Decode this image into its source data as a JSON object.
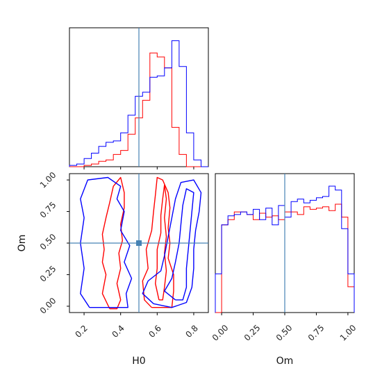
{
  "chart_data": {
    "type": "corner",
    "parameters": [
      "H0",
      "Om"
    ],
    "truth": {
      "H0": 0.5,
      "Om": 0.5
    },
    "colors": {
      "series_red": "#ff0000",
      "series_blue": "#0000ff",
      "truth_line": "#4682b4"
    },
    "h0_marginal": {
      "bin_edges": [
        0.12,
        0.16,
        0.2,
        0.24,
        0.28,
        0.32,
        0.36,
        0.4,
        0.44,
        0.48,
        0.52,
        0.56,
        0.6,
        0.64,
        0.68,
        0.72,
        0.76,
        0.8,
        0.84,
        0.88
      ],
      "series": [
        {
          "name": "",
          "color": "#ff0000",
          "counts": [
            0,
            0,
            0.01,
            0.02,
            0.04,
            0.05,
            0.09,
            0.12,
            0.24,
            0.36,
            0.49,
            0.84,
            0.81,
            0.73,
            0.29,
            0.09,
            0,
            0,
            0
          ]
        },
        {
          "name": "",
          "color": "#0000ff",
          "counts": [
            0.01,
            0.02,
            0.06,
            0.1,
            0.15,
            0.18,
            0.19,
            0.25,
            0.38,
            0.52,
            0.55,
            0.66,
            0.67,
            0.73,
            0.93,
            0.74,
            0.25,
            0.05,
            0
          ]
        }
      ]
    },
    "om_marginal": {
      "bin_edges": [
        -0.05,
        0.0,
        0.05,
        0.1,
        0.15,
        0.2,
        0.25,
        0.3,
        0.35,
        0.4,
        0.45,
        0.5,
        0.55,
        0.6,
        0.65,
        0.7,
        0.75,
        0.8,
        0.85,
        0.9,
        0.95,
        1.0,
        1.05
      ],
      "series": [
        {
          "name": "",
          "color": "#ff0000",
          "counts": [
            0,
            0.68,
            0.72,
            0.78,
            0.78,
            0.76,
            0.72,
            0.77,
            0.74,
            0.75,
            0.72,
            0.78,
            0.78,
            0.76,
            0.82,
            0.8,
            0.81,
            0.82,
            0.79,
            0.84,
            0.74,
            0.2
          ]
        },
        {
          "name": "",
          "color": "#0000ff",
          "counts": [
            0.3,
            0.68,
            0.75,
            0.76,
            0.78,
            0.76,
            0.8,
            0.72,
            0.81,
            0.68,
            0.83,
            0.74,
            0.86,
            0.88,
            0.85,
            0.87,
            0.89,
            0.9,
            0.98,
            0.95,
            0.65,
            0.3
          ]
        }
      ]
    },
    "joint": {
      "xlim": [
        0.12,
        0.88
      ],
      "ylim": [
        -0.05,
        1.05
      ],
      "contours": [
        {
          "color": "#ff0000",
          "points": [
            [
              0.34,
              -0.02
            ],
            [
              0.3,
              0.1
            ],
            [
              0.32,
              0.25
            ],
            [
              0.3,
              0.35
            ],
            [
              0.31,
              0.45
            ],
            [
              0.3,
              0.57
            ],
            [
              0.32,
              0.7
            ],
            [
              0.34,
              0.82
            ],
            [
              0.36,
              0.95
            ],
            [
              0.4,
              1.02
            ],
            [
              0.42,
              0.9
            ],
            [
              0.42,
              0.78
            ],
            [
              0.4,
              0.65
            ],
            [
              0.41,
              0.52
            ],
            [
              0.39,
              0.42
            ],
            [
              0.4,
              0.3
            ],
            [
              0.38,
              0.18
            ],
            [
              0.4,
              0.05
            ],
            [
              0.38,
              -0.02
            ],
            [
              0.34,
              -0.02
            ]
          ]
        },
        {
          "color": "#ff0000",
          "points": [
            [
              0.57,
              -0.01
            ],
            [
              0.53,
              0.05
            ],
            [
              0.52,
              0.2
            ],
            [
              0.55,
              0.3
            ],
            [
              0.54,
              0.45
            ],
            [
              0.57,
              0.6
            ],
            [
              0.58,
              0.75
            ],
            [
              0.59,
              0.88
            ],
            [
              0.6,
              1.02
            ],
            [
              0.63,
              1.0
            ],
            [
              0.66,
              0.9
            ],
            [
              0.67,
              0.78
            ],
            [
              0.66,
              0.62
            ],
            [
              0.67,
              0.5
            ],
            [
              0.66,
              0.38
            ],
            [
              0.69,
              0.25
            ],
            [
              0.69,
              0.12
            ],
            [
              0.68,
              -0.01
            ],
            [
              0.57,
              -0.01
            ]
          ]
        },
        {
          "color": "#ff0000",
          "points": [
            [
              0.61,
              0.05
            ],
            [
              0.59,
              0.18
            ],
            [
              0.6,
              0.3
            ],
            [
              0.6,
              0.45
            ],
            [
              0.62,
              0.58
            ],
            [
              0.62,
              0.72
            ],
            [
              0.63,
              0.85
            ],
            [
              0.64,
              0.96
            ],
            [
              0.65,
              0.85
            ],
            [
              0.64,
              0.7
            ],
            [
              0.65,
              0.55
            ],
            [
              0.64,
              0.42
            ],
            [
              0.65,
              0.28
            ],
            [
              0.64,
              0.15
            ],
            [
              0.63,
              0.05
            ],
            [
              0.61,
              0.05
            ]
          ]
        },
        {
          "color": "#0000ff",
          "points": [
            [
              0.23,
              -0.01
            ],
            [
              0.18,
              0.1
            ],
            [
              0.2,
              0.3
            ],
            [
              0.18,
              0.5
            ],
            [
              0.2,
              0.7
            ],
            [
              0.18,
              0.85
            ],
            [
              0.22,
              1.0
            ],
            [
              0.33,
              1.02
            ],
            [
              0.4,
              0.95
            ],
            [
              0.38,
              0.85
            ],
            [
              0.42,
              0.75
            ],
            [
              0.4,
              0.6
            ],
            [
              0.45,
              0.48
            ],
            [
              0.42,
              0.35
            ],
            [
              0.46,
              0.22
            ],
            [
              0.43,
              0.1
            ],
            [
              0.44,
              -0.01
            ],
            [
              0.23,
              -0.01
            ]
          ]
        },
        {
          "color": "#0000ff",
          "points": [
            [
              0.58,
              0.02
            ],
            [
              0.52,
              0.1
            ],
            [
              0.55,
              0.2
            ],
            [
              0.62,
              0.28
            ],
            [
              0.64,
              0.4
            ],
            [
              0.66,
              0.55
            ],
            [
              0.68,
              0.7
            ],
            [
              0.7,
              0.85
            ],
            [
              0.73,
              0.98
            ],
            [
              0.8,
              1.0
            ],
            [
              0.84,
              0.9
            ],
            [
              0.83,
              0.75
            ],
            [
              0.81,
              0.6
            ],
            [
              0.8,
              0.45
            ],
            [
              0.8,
              0.3
            ],
            [
              0.79,
              0.15
            ],
            [
              0.76,
              0.03
            ],
            [
              0.68,
              -0.01
            ],
            [
              0.58,
              0.02
            ]
          ]
        },
        {
          "color": "#0000ff",
          "points": [
            [
              0.7,
              0.05
            ],
            [
              0.64,
              0.12
            ],
            [
              0.68,
              0.22
            ],
            [
              0.7,
              0.35
            ],
            [
              0.72,
              0.5
            ],
            [
              0.73,
              0.65
            ],
            [
              0.74,
              0.8
            ],
            [
              0.76,
              0.93
            ],
            [
              0.8,
              0.9
            ],
            [
              0.79,
              0.75
            ],
            [
              0.78,
              0.6
            ],
            [
              0.77,
              0.45
            ],
            [
              0.76,
              0.3
            ],
            [
              0.76,
              0.15
            ],
            [
              0.74,
              0.05
            ],
            [
              0.7,
              0.05
            ]
          ]
        }
      ]
    },
    "ticks": {
      "h0": [
        "0.2",
        "0.4",
        "0.6",
        "0.8"
      ],
      "om": [
        "0.00",
        "0.25",
        "0.50",
        "0.75",
        "1.00"
      ]
    },
    "xlabel_joint": "H0",
    "ylabel_joint": "Om",
    "xlabel_marginal": "Om"
  }
}
